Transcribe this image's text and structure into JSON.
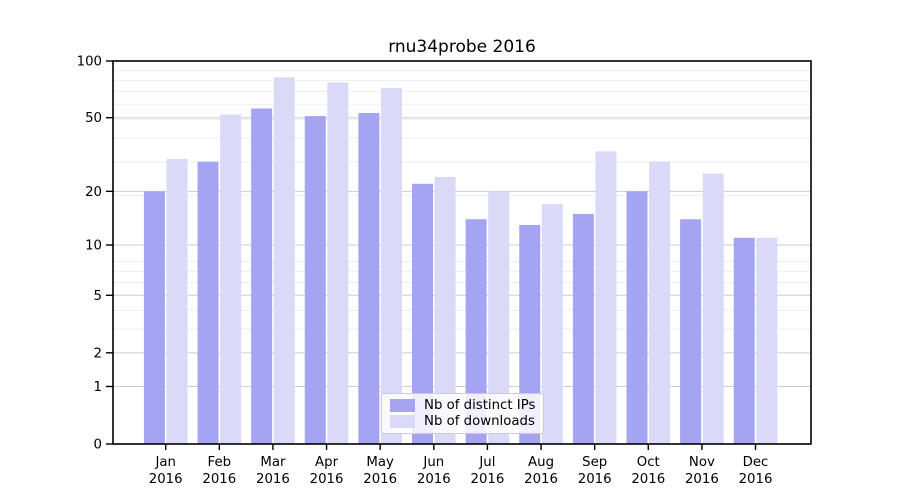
{
  "title": "rnu34probe 2016",
  "chart_data": {
    "type": "bar",
    "title": "rnu34probe 2016",
    "x_axis": {
      "categories": [
        "Jan",
        "Feb",
        "Mar",
        "Apr",
        "May",
        "Jun",
        "Jul",
        "Aug",
        "Sep",
        "Oct",
        "Nov",
        "Dec"
      ],
      "year_line": "2016"
    },
    "y_axis": {
      "scale": "log10(1+x)",
      "ticks": [
        0,
        1,
        2,
        5,
        10,
        20,
        50,
        100
      ],
      "range": [
        0,
        100
      ],
      "grid": true
    },
    "series": [
      {
        "name": "Nb of distinct IPs",
        "color": "#a4a4f2",
        "values": [
          20,
          29,
          56,
          51,
          53,
          22,
          14,
          13,
          15,
          20,
          14,
          11
        ]
      },
      {
        "name": "Nb of downloads",
        "color": "#dadaf8",
        "values": [
          30,
          52,
          82,
          77,
          72,
          24,
          20,
          17,
          33,
          29,
          25,
          11
        ]
      }
    ],
    "legend": {
      "position": "lower center",
      "labels": [
        "Nb of distinct IPs",
        "Nb of downloads"
      ]
    },
    "colors": {
      "major_grid": "#cdcdcd",
      "minor_grid": "#ededed",
      "axis": "#000000",
      "background": "#ffffff"
    }
  }
}
